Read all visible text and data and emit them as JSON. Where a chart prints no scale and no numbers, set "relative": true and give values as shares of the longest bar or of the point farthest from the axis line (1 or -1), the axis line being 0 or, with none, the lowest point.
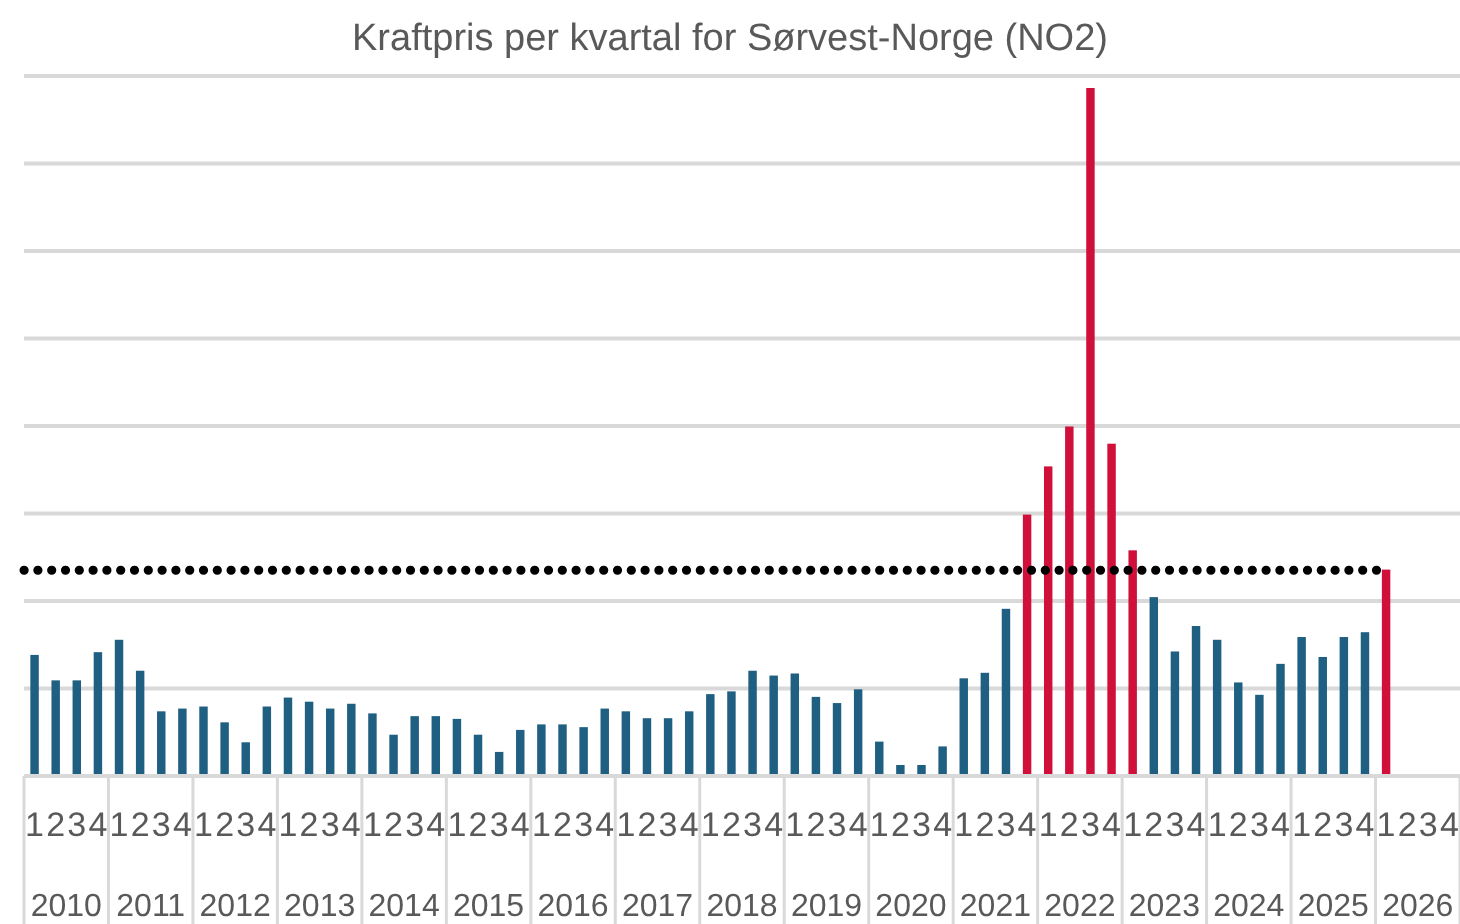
{
  "chart_data": {
    "type": "bar",
    "title": "Kraftpris per kvartal for Sørvest-Norge (NO2)",
    "relative": true,
    "grid": true,
    "categories": [
      "1",
      "2",
      "3",
      "4",
      "1",
      "2",
      "3",
      "4",
      "1",
      "2",
      "3",
      "4",
      "1",
      "2",
      "3",
      "4",
      "1",
      "2",
      "3",
      "4",
      "1",
      "2",
      "3",
      "4",
      "1",
      "2",
      "3",
      "4",
      "1",
      "2",
      "3",
      "4",
      "1",
      "2",
      "3",
      "4",
      "1",
      "2",
      "3",
      "4",
      "1",
      "2",
      "3",
      "4",
      "1",
      "2",
      "3",
      "4",
      "1",
      "2",
      "3",
      "4",
      "1",
      "2",
      "3",
      "4",
      "1",
      "2",
      "3",
      "4",
      "1",
      "2",
      "3",
      "4",
      "1",
      "2",
      "3",
      "4"
    ],
    "values": [
      0.176,
      0.139,
      0.139,
      0.18,
      0.198,
      0.153,
      0.094,
      0.098,
      0.101,
      0.078,
      0.049,
      0.101,
      0.114,
      0.108,
      0.098,
      0.105,
      0.091,
      0.06,
      0.087,
      0.087,
      0.083,
      0.06,
      0.035,
      0.067,
      0.075,
      0.075,
      0.071,
      0.098,
      0.094,
      0.084,
      0.084,
      0.094,
      0.119,
      0.123,
      0.153,
      0.146,
      0.149,
      0.115,
      0.106,
      0.126,
      0.05,
      0.016,
      0.016,
      0.043,
      0.142,
      0.15,
      0.243,
      0.38,
      0.45,
      0.508,
      1,
      0.483,
      0.328,
      0.26,
      0.181,
      0.218,
      0.198,
      0.136,
      0.118,
      0.163,
      0.202,
      0.173,
      0.202,
      0.209,
      0.3,
      null,
      null,
      null
    ],
    "colors": [
      "#1f5f82",
      "#1f5f82",
      "#1f5f82",
      "#1f5f82",
      "#1f5f82",
      "#1f5f82",
      "#1f5f82",
      "#1f5f82",
      "#1f5f82",
      "#1f5f82",
      "#1f5f82",
      "#1f5f82",
      "#1f5f82",
      "#1f5f82",
      "#1f5f82",
      "#1f5f82",
      "#1f5f82",
      "#1f5f82",
      "#1f5f82",
      "#1f5f82",
      "#1f5f82",
      "#1f5f82",
      "#1f5f82",
      "#1f5f82",
      "#1f5f82",
      "#1f5f82",
      "#1f5f82",
      "#1f5f82",
      "#1f5f82",
      "#1f5f82",
      "#1f5f82",
      "#1f5f82",
      "#1f5f82",
      "#1f5f82",
      "#1f5f82",
      "#1f5f82",
      "#1f5f82",
      "#1f5f82",
      "#1f5f82",
      "#1f5f82",
      "#1f5f82",
      "#1f5f82",
      "#1f5f82",
      "#1f5f82",
      "#1f5f82",
      "#1f5f82",
      "#1f5f82",
      "#d0103a",
      "#d0103a",
      "#d0103a",
      "#d0103a",
      "#d0103a",
      "#d0103a",
      "#1f5f82",
      "#1f5f82",
      "#1f5f82",
      "#1f5f82",
      "#1f5f82",
      "#1f5f82",
      "#1f5f82",
      "#1f5f82",
      "#1f5f82",
      "#1f5f82",
      "#1f5f82",
      "#d0103a",
      "#1f5f82",
      "#1f5f82",
      "#1f5f82"
    ],
    "annotations": [
      "2010",
      "2011",
      "2012",
      "2013",
      "2014",
      "2015",
      "2016",
      "2017",
      "2018",
      "2019",
      "2020",
      "2021",
      "2022",
      "2023",
      "2024",
      "2025",
      "2026"
    ],
    "ref_lines": [
      {
        "axis": "y",
        "value": 0.299,
        "color": "#000000",
        "line_style": "dotted"
      }
    ]
  }
}
